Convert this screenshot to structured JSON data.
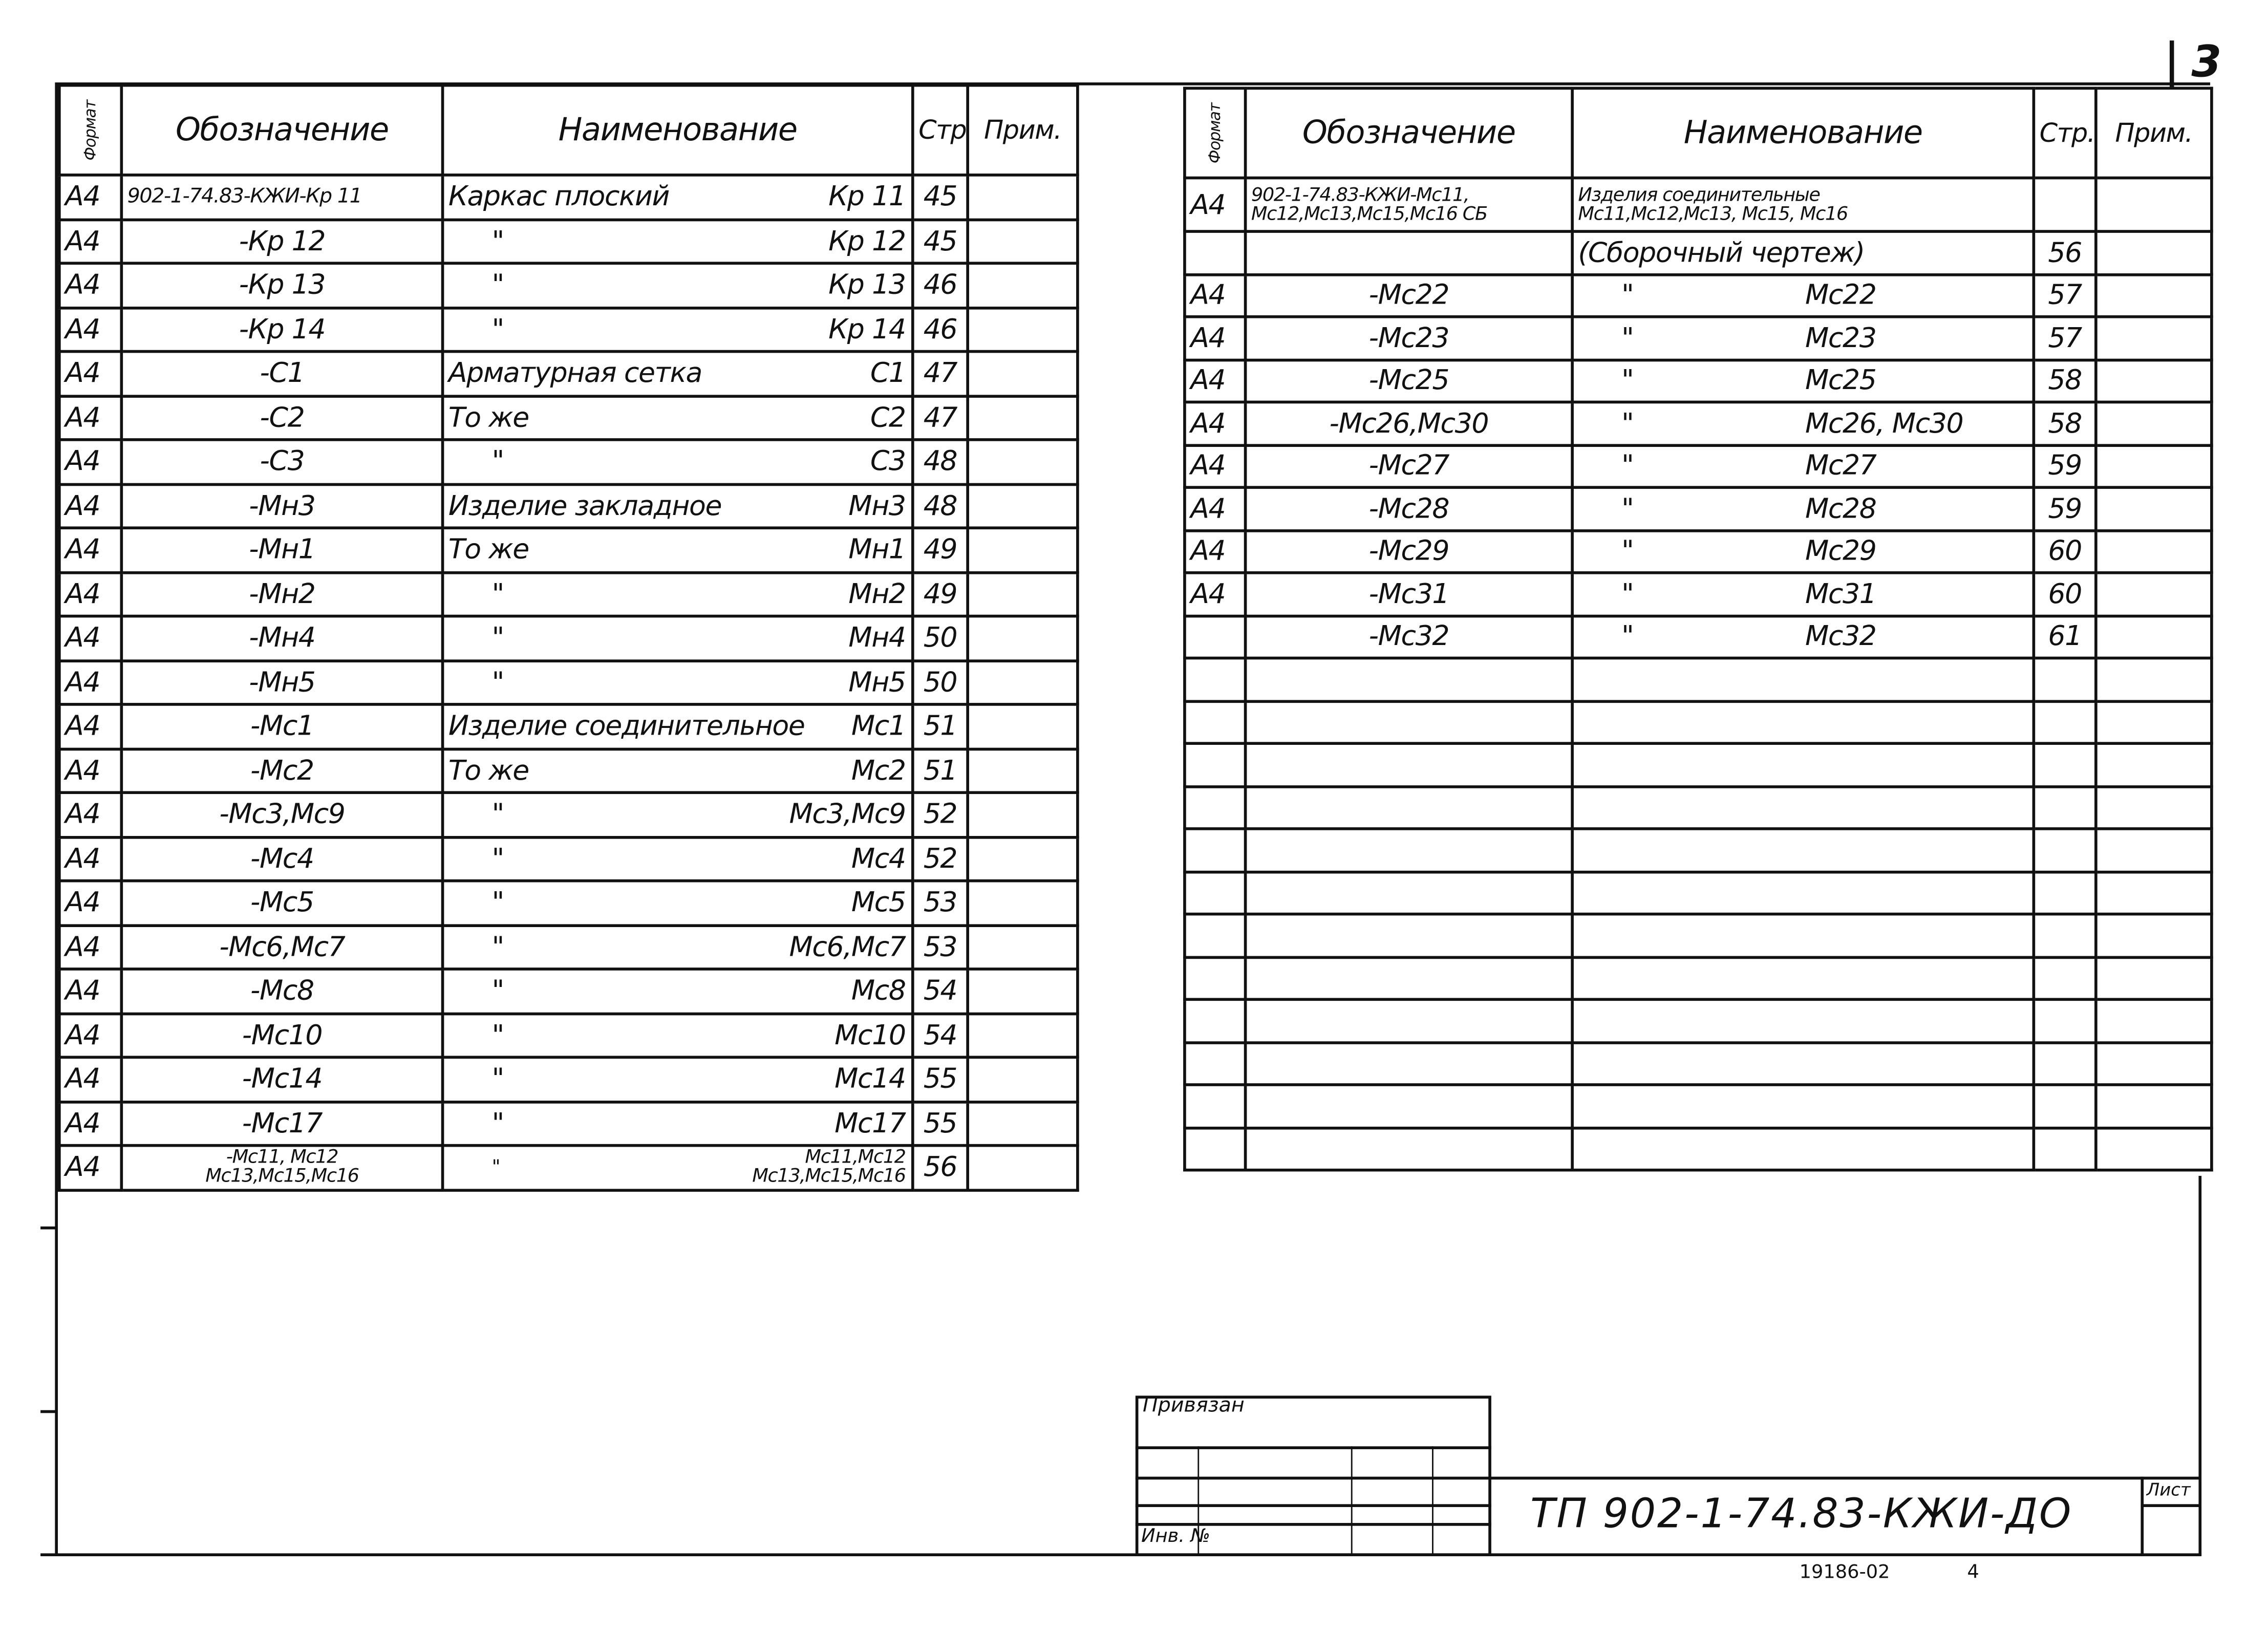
{
  "sheet_number": "3",
  "headers": {
    "format": "Формат",
    "designation": "Обозначение",
    "name": "Наименование",
    "page": "Стр.",
    "note": "Прим."
  },
  "left_table": [
    {
      "format": "А4",
      "designation": "902-1-74.83-КЖИ-Кр 11",
      "name": "Каркас плоский",
      "mark": "Кр 11",
      "page": "45"
    },
    {
      "format": "А4",
      "designation": "-Кр 12",
      "name": "\"",
      "mark": "Кр 12",
      "page": "45"
    },
    {
      "format": "А4",
      "designation": "-Кр 13",
      "name": "\"",
      "mark": "Кр 13",
      "page": "46"
    },
    {
      "format": "А4",
      "designation": "-Кр 14",
      "name": "\"",
      "mark": "Кр 14",
      "page": "46"
    },
    {
      "format": "А4",
      "designation": "-С1",
      "name": "Арматурная сетка",
      "mark": "С1",
      "page": "47"
    },
    {
      "format": "А4",
      "designation": "-С2",
      "name": "То же",
      "mark": "С2",
      "page": "47"
    },
    {
      "format": "А4",
      "designation": "-С3",
      "name": "\"",
      "mark": "С3",
      "page": "48"
    },
    {
      "format": "А4",
      "designation": "-Мн3",
      "name": "Изделие закладное",
      "mark": "Мн3",
      "page": "48"
    },
    {
      "format": "А4",
      "designation": "-Мн1",
      "name": "То же",
      "mark": "Мн1",
      "page": "49"
    },
    {
      "format": "А4",
      "designation": "-Мн2",
      "name": "\"",
      "mark": "Мн2",
      "page": "49"
    },
    {
      "format": "А4",
      "designation": "-Мн4",
      "name": "\"",
      "mark": "Мн4",
      "page": "50"
    },
    {
      "format": "А4",
      "designation": "-Мн5",
      "name": "\"",
      "mark": "Мн5",
      "page": "50"
    },
    {
      "format": "А4",
      "designation": "-Мс1",
      "name": "Изделие соединительное",
      "mark": "Мс1",
      "page": "51"
    },
    {
      "format": "А4",
      "designation": "-Мс2",
      "name": "То же",
      "mark": "Мс2",
      "page": "51"
    },
    {
      "format": "А4",
      "designation": "-Мс3,Мс9",
      "name": "\"",
      "mark": "Мс3,Мс9",
      "page": "52"
    },
    {
      "format": "А4",
      "designation": "-Мс4",
      "name": "\"",
      "mark": "Мс4",
      "page": "52"
    },
    {
      "format": "А4",
      "designation": "-Мс5",
      "name": "\"",
      "mark": "Мс5",
      "page": "53"
    },
    {
      "format": "А4",
      "designation": "-Мс6,Мс7",
      "name": "\"",
      "mark": "Мс6,Мс7",
      "page": "53"
    },
    {
      "format": "А4",
      "designation": "-Мс8",
      "name": "\"",
      "mark": "Мс8",
      "page": "54"
    },
    {
      "format": "А4",
      "designation": "-Мс10",
      "name": "\"",
      "mark": "Мс10",
      "page": "54"
    },
    {
      "format": "А4",
      "designation": "-Мс14",
      "name": "\"",
      "mark": "Мс14",
      "page": "55"
    },
    {
      "format": "А4",
      "designation": "-Мс17",
      "name": "\"",
      "mark": "Мс17",
      "page": "55"
    },
    {
      "format": "А4",
      "designation": "-Мс11, Мс12\nМс13,Мс15,Мс16",
      "name": "\"",
      "mark": "Мс11,Мс12\nМс13,Мс15,Мс16",
      "page": "56"
    }
  ],
  "right_table": [
    {
      "format": "А4",
      "designation": "902-1-74.83-КЖИ-Мс11,\nМс12,Мс13,Мс15,Мс16 СБ",
      "name": "Изделия соединительные\nМс11,Мс12,Мс13, Мс15, Мс16",
      "mark": "",
      "page": ""
    },
    {
      "format": "",
      "designation": "",
      "name": "(Сборочный чертеж)",
      "mark": "",
      "page": "56"
    },
    {
      "format": "А4",
      "designation": "-Мс22",
      "name": "\"",
      "mark": "Мс22",
      "page": "57"
    },
    {
      "format": "А4",
      "designation": "-Мс23",
      "name": "\"",
      "mark": "Мс23",
      "page": "57"
    },
    {
      "format": "А4",
      "designation": "-Мс25",
      "name": "\"",
      "mark": "Мс25",
      "page": "58"
    },
    {
      "format": "А4",
      "designation": "-Мс26,Мс30",
      "name": "\"",
      "mark": "Мс26, Мс30",
      "page": "58"
    },
    {
      "format": "А4",
      "designation": "-Мс27",
      "name": "\"",
      "mark": "Мс27",
      "page": "59"
    },
    {
      "format": "А4",
      "designation": "-Мс28",
      "name": "\"",
      "mark": "Мс28",
      "page": "59"
    },
    {
      "format": "А4",
      "designation": "-Мс29",
      "name": "\"",
      "mark": "Мс29",
      "page": "60"
    },
    {
      "format": "А4",
      "designation": "-Мс31",
      "name": "\"",
      "mark": "Мс31",
      "page": "60"
    },
    {
      "format": "",
      "designation": "-Мс32",
      "name": "\"",
      "mark": "Мс32",
      "page": "61"
    }
  ],
  "right_table_empty_rows": 12,
  "title_block": {
    "linked_label": "Привязан",
    "inv_label": "Инв. №",
    "document_code": "ТП 902-1-74.83-КЖИ-ДО",
    "sheet_label": "Лист",
    "archive_number": "19186-02",
    "archive_suffix": "4"
  }
}
